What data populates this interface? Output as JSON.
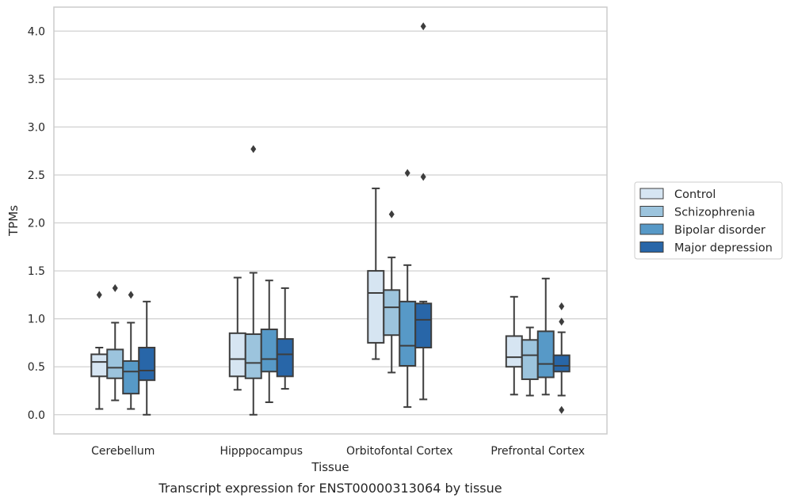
{
  "chart_data": {
    "type": "box",
    "xlabel": "Tissue",
    "ylabel": "TPMs",
    "caption": "Transcript expression for ENST00000313064 by tissue",
    "ylim": [
      -0.2,
      4.25
    ],
    "yticks": [
      "0.0",
      "0.5",
      "1.0",
      "1.5",
      "2.0",
      "2.5",
      "3.0",
      "3.5",
      "4.0"
    ],
    "grid": "horizontal",
    "legend_position": "right",
    "categories": [
      "Cerebellum",
      "Hipppocampus",
      "Orbitofontal Cortex",
      "Prefrontal Cortex"
    ],
    "series": [
      {
        "name": "Control",
        "color": "#d6e5f2",
        "boxes": [
          {
            "whislo": 0.06,
            "q1": 0.4,
            "med": 0.55,
            "q3": 0.63,
            "whishi": 0.7,
            "fliers": [
              1.25
            ]
          },
          {
            "whislo": 0.26,
            "q1": 0.4,
            "med": 0.58,
            "q3": 0.85,
            "whishi": 1.43,
            "fliers": []
          },
          {
            "whislo": 0.58,
            "q1": 0.75,
            "med": 1.27,
            "q3": 1.5,
            "whishi": 2.36,
            "fliers": []
          },
          {
            "whislo": 0.21,
            "q1": 0.5,
            "med": 0.6,
            "q3": 0.82,
            "whishi": 1.23,
            "fliers": []
          }
        ]
      },
      {
        "name": "Schizophrenia",
        "color": "#9cc4dd",
        "boxes": [
          {
            "whislo": 0.15,
            "q1": 0.38,
            "med": 0.49,
            "q3": 0.68,
            "whishi": 0.96,
            "fliers": [
              1.32
            ]
          },
          {
            "whislo": 0.0,
            "q1": 0.38,
            "med": 0.54,
            "q3": 0.84,
            "whishi": 1.48,
            "fliers": [
              2.77
            ]
          },
          {
            "whislo": 0.44,
            "q1": 0.83,
            "med": 1.12,
            "q3": 1.3,
            "whishi": 1.64,
            "fliers": [
              2.09
            ]
          },
          {
            "whislo": 0.2,
            "q1": 0.37,
            "med": 0.62,
            "q3": 0.78,
            "whishi": 0.91,
            "fliers": []
          }
        ]
      },
      {
        "name": "Bipolar disorder",
        "color": "#5799c7",
        "boxes": [
          {
            "whislo": 0.06,
            "q1": 0.22,
            "med": 0.45,
            "q3": 0.56,
            "whishi": 0.96,
            "fliers": [
              1.25
            ]
          },
          {
            "whislo": 0.13,
            "q1": 0.45,
            "med": 0.58,
            "q3": 0.89,
            "whishi": 1.4,
            "fliers": []
          },
          {
            "whislo": 0.08,
            "q1": 0.51,
            "med": 0.72,
            "q3": 1.18,
            "whishi": 1.56,
            "fliers": [
              2.52
            ]
          },
          {
            "whislo": 0.21,
            "q1": 0.39,
            "med": 0.53,
            "q3": 0.87,
            "whishi": 1.42,
            "fliers": []
          }
        ]
      },
      {
        "name": "Major depression",
        "color": "#2866a8",
        "boxes": [
          {
            "whislo": 0.0,
            "q1": 0.36,
            "med": 0.46,
            "q3": 0.7,
            "whishi": 1.18,
            "fliers": []
          },
          {
            "whislo": 0.27,
            "q1": 0.4,
            "med": 0.63,
            "q3": 0.79,
            "whishi": 1.32,
            "fliers": []
          },
          {
            "whislo": 0.16,
            "q1": 0.7,
            "med": 0.99,
            "q3": 1.16,
            "whishi": 1.18,
            "fliers": [
              4.05,
              2.48
            ]
          },
          {
            "whislo": 0.2,
            "q1": 0.45,
            "med": 0.51,
            "q3": 0.62,
            "whishi": 0.86,
            "fliers": [
              1.13,
              0.97,
              0.05
            ]
          }
        ]
      }
    ]
  }
}
